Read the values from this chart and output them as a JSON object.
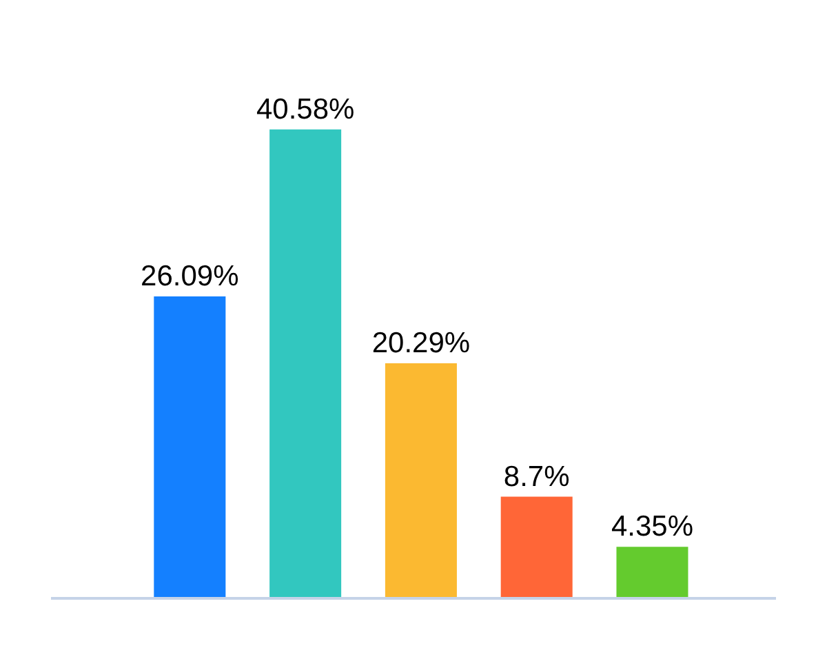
{
  "chart_data": {
    "type": "bar",
    "categories": [
      null,
      null,
      null,
      null,
      null
    ],
    "values": [
      26.09,
      40.58,
      20.29,
      8.7,
      4.35
    ],
    "colors": [
      "#1480ff",
      "#32c7bf",
      "#fbb931",
      "#ff6637",
      "#64cb2e"
    ],
    "value_labels": [
      "26.09%",
      "40.58%",
      "20.29%",
      "8.7%",
      "4.35%"
    ]
  }
}
